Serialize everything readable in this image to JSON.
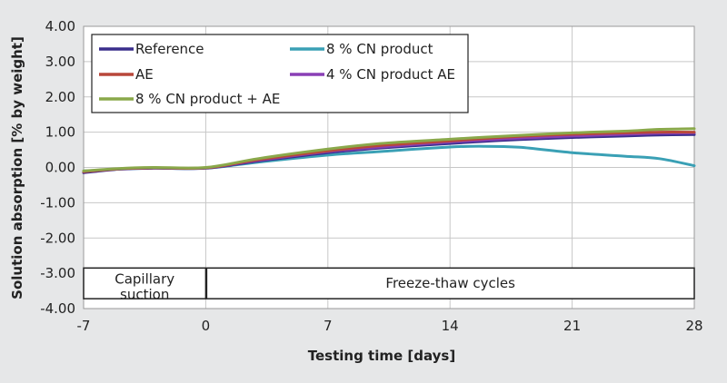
{
  "chart_data": {
    "type": "line",
    "title": "",
    "xlabel": "Testing time [days]",
    "ylabel": "Solution absorption [% by weight]",
    "xlim": [
      -7,
      28
    ],
    "ylim": [
      -4,
      4
    ],
    "x_ticks": [
      "-7",
      "0",
      "7",
      "14",
      "21",
      "28"
    ],
    "x_tick_values": [
      -7,
      0,
      7,
      14,
      21,
      28
    ],
    "y_ticks": [
      "4.00",
      "3.00",
      "2.00",
      "1.00",
      "0.00",
      "-1.00",
      "-2.00",
      "-3.00",
      "-4.00"
    ],
    "y_tick_values": [
      4,
      3,
      2,
      1,
      0,
      -1,
      -2,
      -3,
      -4
    ],
    "grid": true,
    "legend_position": "top-left",
    "x": [
      -7,
      -5,
      -3,
      0,
      3,
      7,
      10,
      14,
      16,
      18,
      21,
      24,
      26,
      28
    ],
    "series": [
      {
        "name": "Reference",
        "color": "#3a2e8c",
        "values": [
          -0.15,
          -0.05,
          -0.02,
          -0.02,
          0.18,
          0.42,
          0.55,
          0.68,
          0.74,
          0.79,
          0.85,
          0.89,
          0.92,
          0.93
        ]
      },
      {
        "name": "8 % CN product",
        "color": "#3aa0b5",
        "values": [
          -0.1,
          -0.05,
          -0.02,
          -0.02,
          0.15,
          0.35,
          0.45,
          0.58,
          0.6,
          0.57,
          0.42,
          0.32,
          0.25,
          0.05
        ]
      },
      {
        "name": "AE",
        "color": "#b8473a",
        "values": [
          -0.12,
          -0.04,
          -0.01,
          -0.01,
          0.22,
          0.47,
          0.62,
          0.75,
          0.82,
          0.88,
          0.94,
          0.98,
          1.0,
          1.0
        ]
      },
      {
        "name": "4 % CN product AE",
        "color": "#8a3fb5",
        "values": [
          -0.12,
          -0.04,
          -0.01,
          -0.01,
          0.2,
          0.45,
          0.58,
          0.72,
          0.78,
          0.83,
          0.89,
          0.94,
          0.97,
          0.98
        ]
      },
      {
        "name": "8 % CN product + AE",
        "color": "#8aa84a",
        "values": [
          -0.1,
          -0.03,
          0.0,
          0.0,
          0.25,
          0.52,
          0.68,
          0.8,
          0.86,
          0.91,
          0.98,
          1.03,
          1.08,
          1.1
        ]
      }
    ],
    "phases": [
      {
        "label_line1": "Capillary",
        "label_line2": "suction",
        "from": -7,
        "to": 0
      },
      {
        "label_line1": "Freeze-thaw cycles",
        "label_line2": "",
        "from": 0,
        "to": 28
      }
    ]
  }
}
